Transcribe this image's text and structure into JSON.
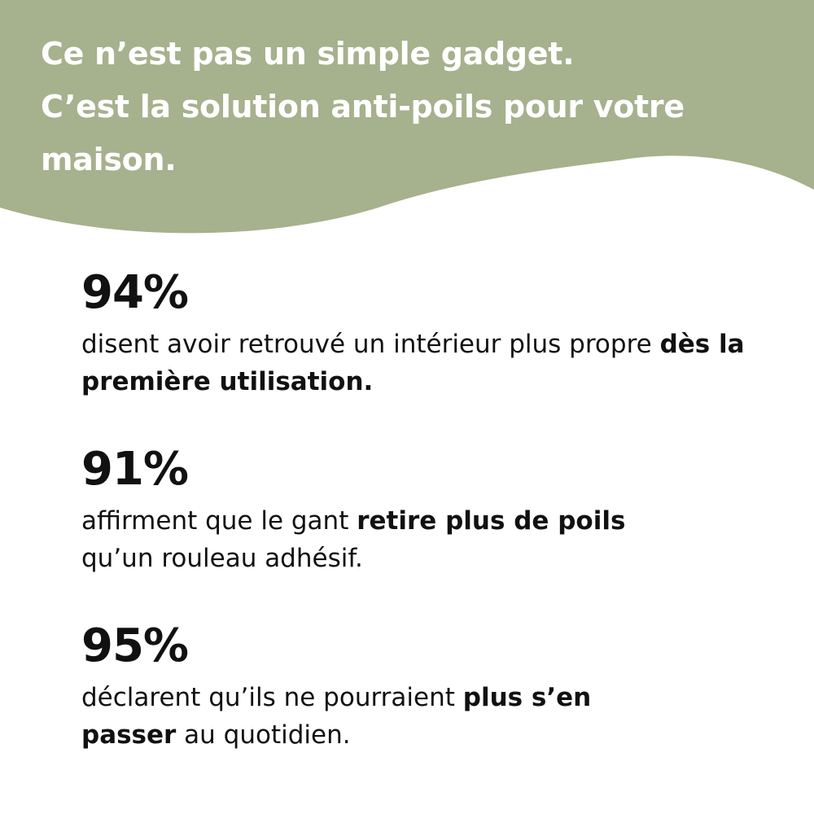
{
  "colors": {
    "banner": "#a6b18d",
    "text": "#111111",
    "headline": "#ffffff"
  },
  "headline": {
    "line1": "Ce n’est pas un simple gadget.",
    "line2": "C’est la solution anti-poils pour votre",
    "line3": "maison."
  },
  "stats": [
    {
      "value": "94%",
      "text_a": "disent avoir retrouvé un intérieur plus propre ",
      "bold_a": "dès la première utilisation.",
      "text_b": ""
    },
    {
      "value": "91%",
      "text_a": "affirment que le gant ",
      "bold_a": "retire plus de poils",
      "text_b": " qu’un rouleau adhésif."
    },
    {
      "value": "95%",
      "text_a": "déclarent qu’ils ne pourraient ",
      "bold_a": "plus s’en passer",
      "text_b": " au quotidien."
    }
  ]
}
